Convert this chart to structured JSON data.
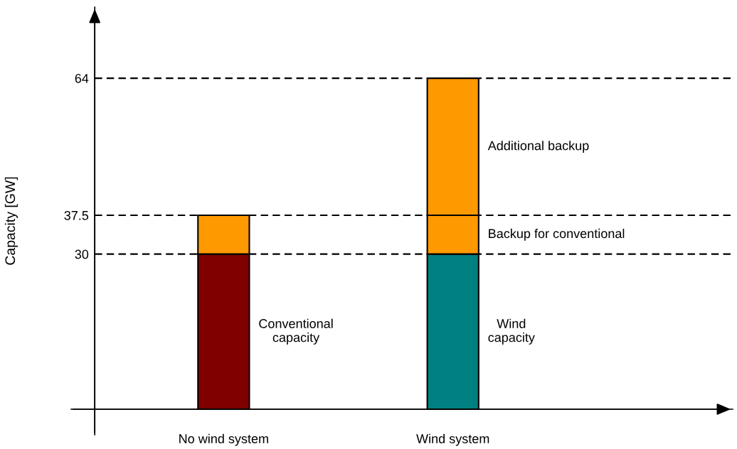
{
  "chart_data": {
    "type": "bar",
    "stacked": true,
    "ylabel": "Capacity [GW]",
    "categories": [
      "No wind system",
      "Wind system"
    ],
    "series": [
      {
        "name": "Conventional\ncapacity",
        "color": "#800000",
        "values": [
          30,
          null
        ]
      },
      {
        "name": "Wind\ncapacity",
        "color": "#008080",
        "values": [
          null,
          30
        ]
      },
      {
        "name": "Backup for conventional",
        "color": "#ff9900",
        "values": [
          7.5,
          7.5
        ]
      },
      {
        "name": "Additional backup",
        "color": "#ff9900",
        "values": [
          null,
          26.5
        ]
      }
    ],
    "ylim": [
      -4.95,
      77.75
    ],
    "yticks": [
      30,
      37.5,
      64
    ],
    "ref_lines": [
      {
        "axis": "y",
        "value": 30,
        "line_style": "dashed"
      },
      {
        "axis": "y",
        "value": 37.5,
        "line_style": "dashed"
      },
      {
        "axis": "y",
        "value": 64,
        "line_style": "dashed"
      }
    ],
    "legend": false
  }
}
